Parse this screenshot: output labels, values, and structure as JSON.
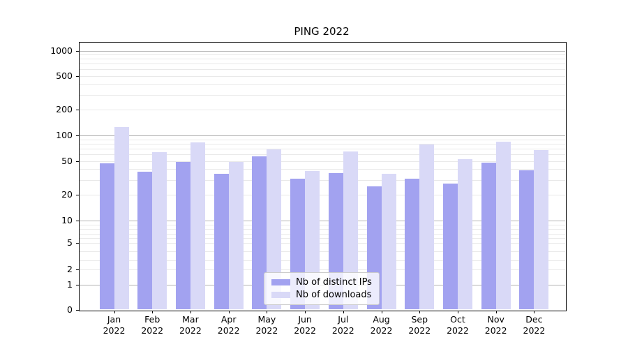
{
  "chart_data": {
    "type": "bar",
    "title": "PING 2022",
    "categories": [
      "Jan",
      "Feb",
      "Mar",
      "Apr",
      "May",
      "Jun",
      "Jul",
      "Aug",
      "Sep",
      "Oct",
      "Nov",
      "Dec"
    ],
    "x_year_label": "2022",
    "series": [
      {
        "name": "Nb of distinct IPs",
        "color": "#a2a2f0",
        "values": [
          47,
          37,
          49,
          35,
          57,
          31,
          36,
          25,
          31,
          27,
          48,
          39
        ]
      },
      {
        "name": "Nb of downloads",
        "color": "#d9d9f7",
        "values": [
          125,
          63,
          82,
          49,
          69,
          38,
          65,
          35,
          78,
          53,
          85,
          67
        ]
      }
    ],
    "yscale": "symlog",
    "y_ticks": [
      0,
      1,
      2,
      5,
      10,
      20,
      50,
      100,
      200,
      500,
      1000
    ],
    "ylim": [
      0,
      1300
    ],
    "grid": "horizontal",
    "legend_position": "lower center",
    "colors": {
      "major_gridline": "#b3b3b3",
      "minor_gridline": "#e9e9e9",
      "spine": "#000000",
      "text": "#000000"
    }
  }
}
